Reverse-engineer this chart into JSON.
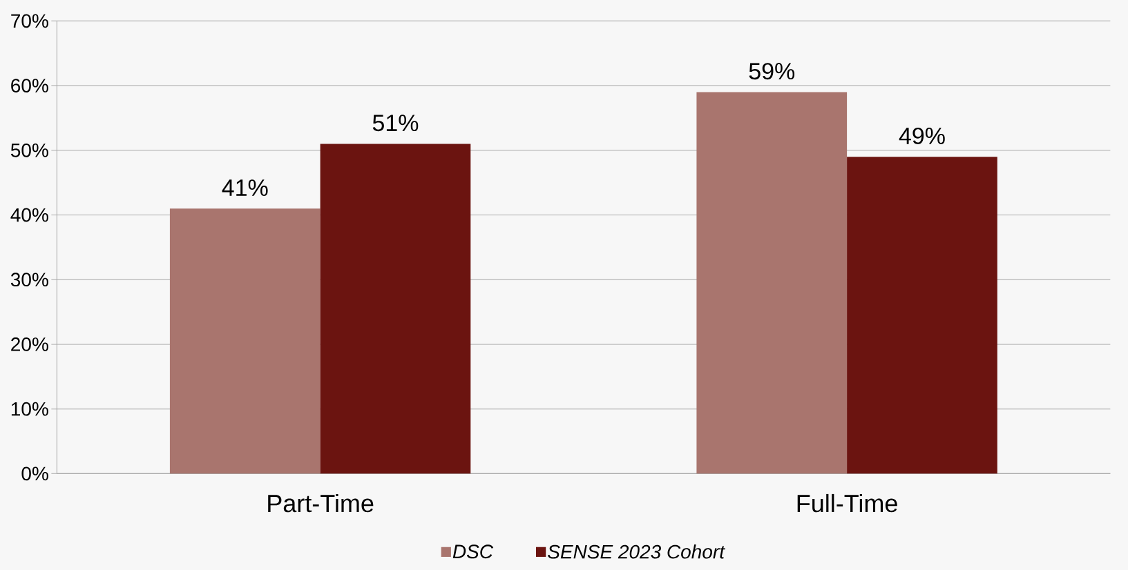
{
  "chart_data": {
    "type": "bar",
    "categories": [
      "Part-Time",
      "Full-Time"
    ],
    "series": [
      {
        "name": "DSC",
        "color": "#a9756e",
        "values": [
          41,
          59
        ],
        "value_labels": [
          "41%",
          "59%"
        ]
      },
      {
        "name": "SENSE 2023 Cohort",
        "color": "#6b1410",
        "values": [
          51,
          49
        ],
        "value_labels": [
          "51%",
          "49%"
        ]
      }
    ],
    "ylim": [
      0,
      70
    ],
    "yticks": [
      {
        "value": 0,
        "label": "0%"
      },
      {
        "value": 10,
        "label": "10%"
      },
      {
        "value": 20,
        "label": "20%"
      },
      {
        "value": 30,
        "label": "30%"
      },
      {
        "value": 40,
        "label": "40%"
      },
      {
        "value": 50,
        "label": "50%"
      },
      {
        "value": 60,
        "label": "60%"
      },
      {
        "value": 70,
        "label": "70%"
      }
    ],
    "grid": "y",
    "legend": "bottom"
  }
}
